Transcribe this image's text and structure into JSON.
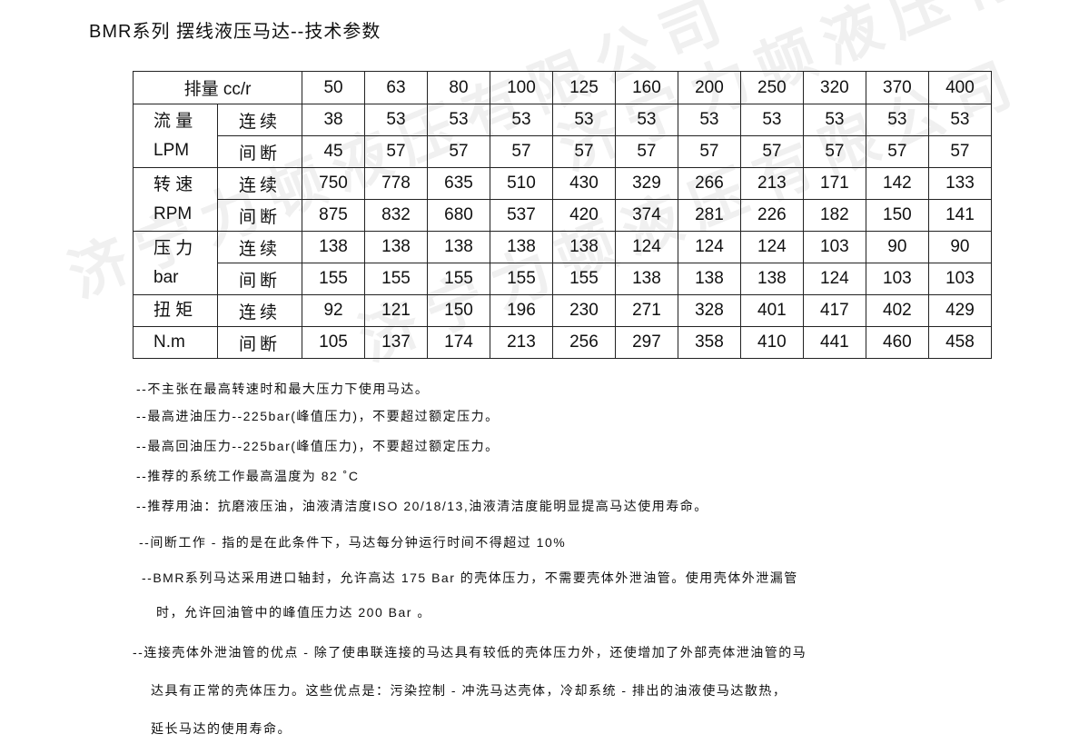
{
  "title": "BMR系列 摆线液压马达--技术参数",
  "watermark": "济宁力顿液压有限公司",
  "table": {
    "header_label": "排量 cc/r",
    "displacements": [
      "50",
      "63",
      "80",
      "100",
      "125",
      "160",
      "200",
      "250",
      "320",
      "370",
      "400"
    ],
    "groups": [
      {
        "label": "流 量",
        "unit": "LPM",
        "rows": [
          {
            "mode": "连续",
            "values": [
              "38",
              "53",
              "53",
              "53",
              "53",
              "53",
              "53",
              "53",
              "53",
              "53",
              "53"
            ]
          },
          {
            "mode": "间断",
            "values": [
              "45",
              "57",
              "57",
              "57",
              "57",
              "57",
              "57",
              "57",
              "57",
              "57",
              "57"
            ]
          }
        ]
      },
      {
        "label": "转 速",
        "unit": "RPM",
        "rows": [
          {
            "mode": "连续",
            "values": [
              "750",
              "778",
              "635",
              "510",
              "430",
              "329",
              "266",
              "213",
              "171",
              "142",
              "133"
            ]
          },
          {
            "mode": "间断",
            "values": [
              "875",
              "832",
              "680",
              "537",
              "420",
              "374",
              "281",
              "226",
              "182",
              "150",
              "141"
            ]
          }
        ]
      },
      {
        "label": "压 力",
        "unit": "bar",
        "rows": [
          {
            "mode": "连续",
            "values": [
              "138",
              "138",
              "138",
              "138",
              "138",
              "124",
              "124",
              "124",
              "103",
              "90",
              "90"
            ]
          },
          {
            "mode": "间断",
            "values": [
              "155",
              "155",
              "155",
              "155",
              "155",
              "138",
              "138",
              "138",
              "124",
              "103",
              "103"
            ]
          }
        ]
      },
      {
        "label": "扭 矩",
        "unit": "N.m",
        "split": true,
        "rows": [
          {
            "mode": "连续",
            "values": [
              "92",
              "121",
              "150",
              "196",
              "230",
              "271",
              "328",
              "401",
              "417",
              "402",
              "429"
            ]
          },
          {
            "mode": "间断",
            "values": [
              "105",
              "137",
              "174",
              "213",
              "256",
              "297",
              "358",
              "410",
              "441",
              "460",
              "458"
            ]
          }
        ]
      }
    ]
  },
  "notes": [
    "--不主张在最高转速时和最大压力下使用马达。",
    "--最高进油压力--225bar(峰值压力)，不要超过额定压力。",
    "--最高回油压力--225bar(峰值压力)，不要超过额定压力。",
    "--推荐的系统工作最高温度为 82 ˚C",
    "--推荐用油：抗磨液压油，油液清洁度ISO 20/18/13,油液清洁度能明显提高马达使用寿命。",
    "--间断工作 - 指的是在此条件下，马达每分钟运行时间不得超过 10%",
    "--BMR系列马达采用进口轴封，允许高达 175 Bar 的壳体压力，不需要壳体外泄油管。使用壳体外泄漏管",
    "时，允许回油管中的峰值压力达 200 Bar 。",
    "--连接壳体外泄油管的优点 - 除了使串联连接的马达具有较低的壳体压力外，还使增加了外部壳体泄油管的马",
    "达具有正常的壳体压力。这些优点是：污染控制 - 冲洗马达壳体，冷却系统 - 排出的油液使马达散热，",
    "延长马达的使用寿命。"
  ]
}
